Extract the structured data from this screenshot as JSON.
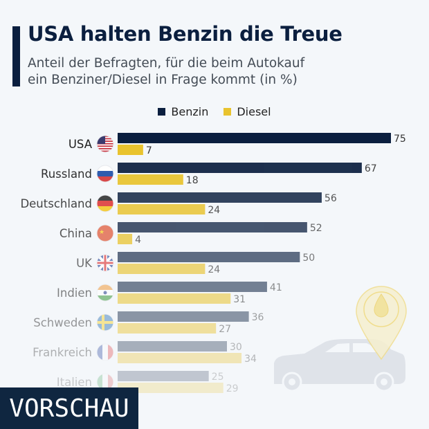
{
  "header": {
    "title": "USA halten Benzin die Treue",
    "subtitle_line1": "Anteil der Befragten, für die beim Autokauf",
    "subtitle_line2": "ein Benziner/Diesel in Frage kommt (in %)"
  },
  "legend": [
    {
      "label": "Benzin",
      "color": "#0b1f3f"
    },
    {
      "label": "Diesel",
      "color": "#e9c32e"
    }
  ],
  "chart_data": {
    "type": "bar",
    "orientation": "horizontal",
    "categories": [
      "USA",
      "Russland",
      "Deutschland",
      "China",
      "UK",
      "Indien",
      "Schweden",
      "Frankreich",
      "Italien"
    ],
    "series": [
      {
        "name": "Benzin",
        "color": "#0b1f3f",
        "values": [
          75,
          67,
          56,
          52,
          50,
          41,
          36,
          30,
          25
        ]
      },
      {
        "name": "Diesel",
        "color": "#e9c32e",
        "values": [
          7,
          18,
          24,
          4,
          24,
          31,
          27,
          34,
          29
        ]
      }
    ],
    "xlim": [
      0,
      75
    ],
    "grid": false,
    "legend_position": "top",
    "data_labels": true,
    "flag_icons": [
      "us-flag-icon",
      "russia-flag-icon",
      "germany-flag-icon",
      "china-flag-icon",
      "uk-flag-icon",
      "india-flag-icon",
      "sweden-flag-icon",
      "france-flag-icon",
      "italy-flag-icon"
    ]
  },
  "badge": {
    "label": "VORSCHAU"
  }
}
